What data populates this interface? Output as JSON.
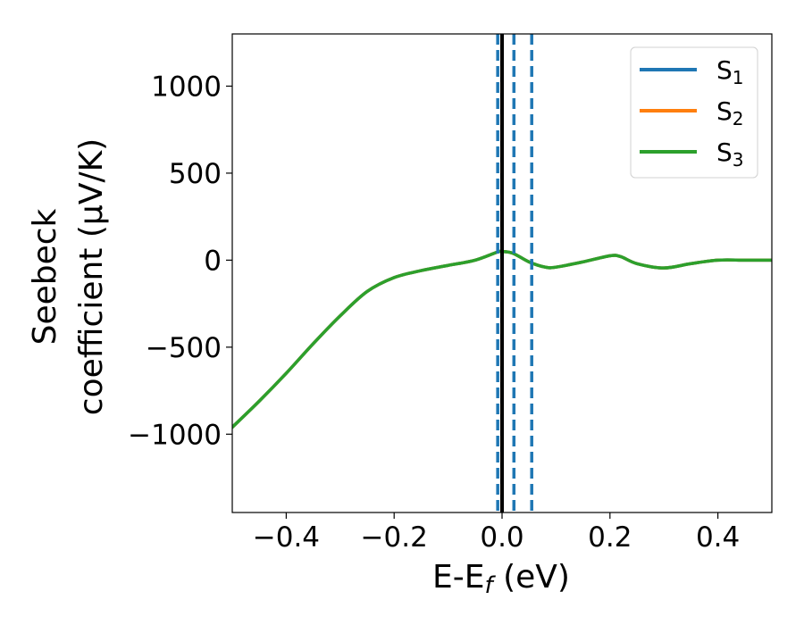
{
  "chart_data": {
    "type": "line",
    "title": "",
    "xlabel": "E-E",
    "xlabel_sub": "f",
    "xlabel_unit": " (eV)",
    "ylabel_line1": "Seebeck",
    "ylabel_line2": "coefficient  (μV/K)",
    "xlim": [
      -0.5,
      0.5
    ],
    "ylim": [
      -1450,
      1300
    ],
    "xticks": [
      -0.4,
      -0.2,
      0.0,
      0.2,
      0.4
    ],
    "xtick_labels": [
      "−0.4",
      "−0.2",
      "0.0",
      "0.2",
      "0.4"
    ],
    "yticks": [
      -1000,
      -500,
      0,
      500,
      1000
    ],
    "ytick_labels": [
      "−1000",
      "−500",
      "0",
      "500",
      "1000"
    ],
    "grid": false,
    "legend_position": "top-right",
    "series": [
      {
        "name": "S",
        "name_sub": "1",
        "color": "#1f77b4",
        "x": [
          -0.5,
          -0.45,
          -0.4,
          -0.35,
          -0.3,
          -0.25,
          -0.2,
          -0.15,
          -0.1,
          -0.05,
          -0.01,
          0.0,
          0.02,
          0.05,
          0.08,
          0.1,
          0.15,
          0.2,
          0.22,
          0.25,
          0.3,
          0.35,
          0.4,
          0.45,
          0.5
        ],
        "y": [
          -960,
          -810,
          -650,
          -480,
          -320,
          -180,
          -100,
          -60,
          -30,
          0,
          45,
          50,
          40,
          -10,
          -40,
          -40,
          -10,
          25,
          20,
          -20,
          -45,
          -20,
          0,
          0,
          0
        ]
      },
      {
        "name": "S",
        "name_sub": "2",
        "color": "#ff7f0e",
        "x": [
          -0.5,
          -0.45,
          -0.4,
          -0.35,
          -0.3,
          -0.25,
          -0.2,
          -0.15,
          -0.1,
          -0.05,
          -0.01,
          0.0,
          0.02,
          0.05,
          0.08,
          0.1,
          0.15,
          0.2,
          0.22,
          0.25,
          0.3,
          0.35,
          0.4,
          0.45,
          0.5
        ],
        "y": [
          -960,
          -810,
          -650,
          -480,
          -320,
          -180,
          -100,
          -60,
          -30,
          0,
          45,
          50,
          40,
          -10,
          -40,
          -40,
          -10,
          25,
          20,
          -20,
          -45,
          -20,
          0,
          0,
          0
        ]
      },
      {
        "name": "S",
        "name_sub": "3",
        "color": "#2ca02c",
        "x": [
          -0.5,
          -0.45,
          -0.4,
          -0.35,
          -0.3,
          -0.25,
          -0.2,
          -0.15,
          -0.1,
          -0.05,
          -0.01,
          0.0,
          0.02,
          0.05,
          0.08,
          0.1,
          0.15,
          0.2,
          0.22,
          0.25,
          0.3,
          0.35,
          0.4,
          0.45,
          0.5
        ],
        "y": [
          -960,
          -810,
          -650,
          -480,
          -320,
          -180,
          -100,
          -60,
          -30,
          0,
          45,
          50,
          40,
          -10,
          -40,
          -40,
          -10,
          25,
          20,
          -20,
          -45,
          -20,
          0,
          0,
          0
        ]
      }
    ],
    "vlines": [
      {
        "x": 0.0,
        "color": "#000000",
        "style": "solid"
      },
      {
        "x": -0.008,
        "color": "#1f77b4",
        "style": "dashed"
      },
      {
        "x": 0.022,
        "color": "#1f77b4",
        "style": "dashed"
      },
      {
        "x": 0.055,
        "color": "#1f77b4",
        "style": "dashed"
      }
    ]
  }
}
